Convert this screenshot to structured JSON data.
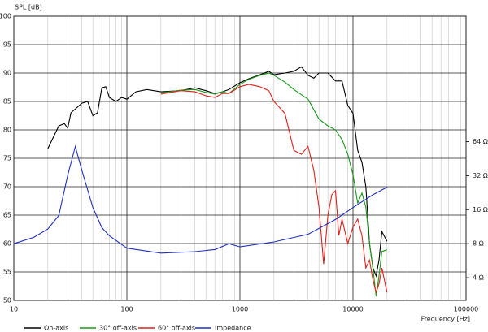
{
  "chart_data": {
    "type": "line",
    "y_label": "SPL [dB]",
    "x_label": "Frequency [Hz]",
    "xscale": "log",
    "y2scale": "log",
    "grid": true,
    "xlim": [
      10,
      100000
    ],
    "ylim": [
      50,
      100
    ],
    "y2lim": [
      2.52,
      826
    ],
    "xticks": [
      10,
      100,
      1000,
      10000,
      100000
    ],
    "xticks_minor": [
      20,
      30,
      40,
      50,
      60,
      70,
      80,
      90,
      200,
      300,
      400,
      500,
      600,
      700,
      800,
      900,
      2000,
      3000,
      4000,
      5000,
      6000,
      7000,
      8000,
      9000,
      20000,
      30000,
      40000,
      50000,
      60000,
      70000,
      80000,
      90000
    ],
    "yticks": [
      50,
      55,
      60,
      65,
      70,
      75,
      80,
      85,
      90,
      95,
      100
    ],
    "y2ticks": [
      {
        "value": 4,
        "label": "4 Ω"
      },
      {
        "value": 8,
        "label": "8 Ω"
      },
      {
        "value": 16,
        "label": "16 Ω"
      },
      {
        "value": 32,
        "label": "32 Ω"
      },
      {
        "value": 64,
        "label": "64 Ω"
      }
    ],
    "legend": "bottom",
    "series": [
      {
        "name": "On-axis",
        "color": "#000000",
        "x": [
          20,
          25,
          28,
          30,
          32,
          40,
          45,
          50,
          55,
          60,
          65,
          70,
          80,
          90,
          100,
          120,
          150,
          200,
          300,
          400,
          500,
          600,
          700,
          800,
          1000,
          1200,
          1500,
          1800,
          2000,
          2500,
          3000,
          3500,
          4000,
          4500,
          5000,
          6000,
          7000,
          8000,
          9000,
          10000,
          11000,
          12000,
          13000,
          14000,
          15000,
          16000,
          17000,
          18000,
          20000
        ],
        "values": [
          76.7,
          80.7,
          81.1,
          80.3,
          83.0,
          84.7,
          85,
          82.5,
          83,
          87.4,
          87.6,
          85.7,
          85,
          85.7,
          85.4,
          86.7,
          87.1,
          86.7,
          86.9,
          87.4,
          86.9,
          86.4,
          86.7,
          87.1,
          88.3,
          89,
          89.7,
          90.3,
          89.7,
          90,
          90.3,
          91.1,
          89.6,
          89.1,
          90,
          90,
          88.6,
          88.6,
          84.3,
          82.9,
          76.4,
          74.3,
          70,
          60,
          55.7,
          54.3,
          57.1,
          62.1,
          60.4
        ]
      },
      {
        "name": "30° off-axis",
        "color": "#1a9a1a",
        "x": [
          200,
          300,
          400,
          500,
          600,
          700,
          800,
          1000,
          1200,
          1500,
          1800,
          2000,
          2500,
          3000,
          4000,
          5000,
          6000,
          7000,
          8000,
          9000,
          10000,
          11000,
          12000,
          13000,
          14000,
          15000,
          16000,
          17000,
          18000,
          20000
        ],
        "values": [
          86.5,
          87,
          87.1,
          86.6,
          86.3,
          86.7,
          86.4,
          88,
          88.9,
          89.6,
          90,
          89.6,
          88.4,
          87.1,
          85.4,
          81.9,
          80.7,
          80,
          78.3,
          75.7,
          72.1,
          67.1,
          68.9,
          66.4,
          60,
          55.7,
          50.7,
          54.3,
          58.6,
          58.9
        ]
      },
      {
        "name": "60° off-axis",
        "color": "#e0201a",
        "x": [
          200,
          300,
          400,
          500,
          600,
          700,
          800,
          1000,
          1200,
          1500,
          1800,
          2000,
          2500,
          3000,
          3500,
          4000,
          4500,
          5000,
          5500,
          6000,
          6500,
          7000,
          7500,
          8000,
          9000,
          10000,
          11000,
          12000,
          13000,
          14000,
          15000,
          16000,
          17000,
          18000,
          20000
        ],
        "values": [
          86.3,
          86.9,
          86.7,
          86,
          85.7,
          86.4,
          86.4,
          87.6,
          88,
          87.6,
          86.9,
          85,
          82.9,
          76.4,
          75.7,
          77.1,
          72.9,
          66.4,
          56.4,
          65,
          68.6,
          69.3,
          61.4,
          64.3,
          60,
          62.9,
          64.3,
          61.4,
          55.7,
          57.1,
          53.6,
          51.4,
          52.9,
          55.7,
          51.4
        ]
      },
      {
        "name": "Impedance",
        "color": "#2030c0",
        "axis": "y2",
        "x": [
          10,
          15,
          20,
          25,
          30,
          35,
          40,
          50,
          60,
          70,
          100,
          200,
          400,
          600,
          800,
          1000,
          2000,
          4000,
          7000,
          10000,
          15000,
          20000
        ],
        "values": [
          8,
          9.1,
          10.8,
          14.2,
          32.4,
          58,
          35.6,
          16.7,
          11.1,
          9.4,
          7.3,
          6.6,
          6.8,
          7.1,
          8,
          7.5,
          8.3,
          9.7,
          13.1,
          16.7,
          21.7,
          25.3
        ]
      }
    ]
  }
}
